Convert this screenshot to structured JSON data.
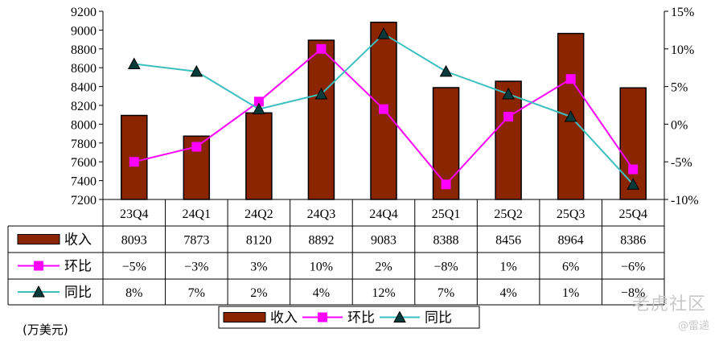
{
  "chart_data": {
    "type": "bar",
    "categories": [
      "23Q4",
      "24Q1",
      "24Q2",
      "24Q3",
      "24Q4",
      "25Q1",
      "25Q2",
      "25Q3",
      "25Q4"
    ],
    "series": [
      {
        "name": "收入",
        "type": "bar",
        "axis": "left",
        "values": [
          8093,
          7873,
          8120,
          8892,
          9083,
          8388,
          8456,
          8964,
          8386
        ],
        "labels": [
          "8093",
          "7873",
          "8120",
          "8892",
          "9083",
          "8388",
          "8456",
          "8964",
          "8386"
        ],
        "color": "#8b2500"
      },
      {
        "name": "环比",
        "type": "line",
        "axis": "right",
        "marker": "square",
        "values": [
          -5,
          -3,
          3,
          10,
          2,
          -8,
          1,
          6,
          -6
        ],
        "labels": [
          "−5%",
          "−3%",
          "3%",
          "10%",
          "2%",
          "−8%",
          "1%",
          "6%",
          "−6%"
        ],
        "color": "#ff00ff"
      },
      {
        "name": "同比",
        "type": "line",
        "axis": "right",
        "marker": "triangle",
        "values": [
          8,
          7,
          2,
          4,
          12,
          7,
          4,
          1,
          -8
        ],
        "labels": [
          "8%",
          "7%",
          "2%",
          "4%",
          "12%",
          "7%",
          "4%",
          "1%",
          "−8%"
        ],
        "color": "#3cbfbf"
      }
    ],
    "ylim": [
      7200,
      9200
    ],
    "y_ticks": [
      "9200",
      "9000",
      "8800",
      "8600",
      "8400",
      "8200",
      "8000",
      "7800",
      "7600",
      "7400",
      "7200"
    ],
    "y2lim": [
      -10,
      15
    ],
    "y2_ticks": [
      "15%",
      "10%",
      "5%",
      "0%",
      "-5%",
      "-10%"
    ],
    "legend": {
      "items": [
        "收入",
        "环比",
        "同比"
      ],
      "placement": "bottom"
    },
    "grid": false,
    "data_table": true
  },
  "unit_label": "(万美元)",
  "watermark": "老虎社区",
  "watermark_author": "@雷递"
}
